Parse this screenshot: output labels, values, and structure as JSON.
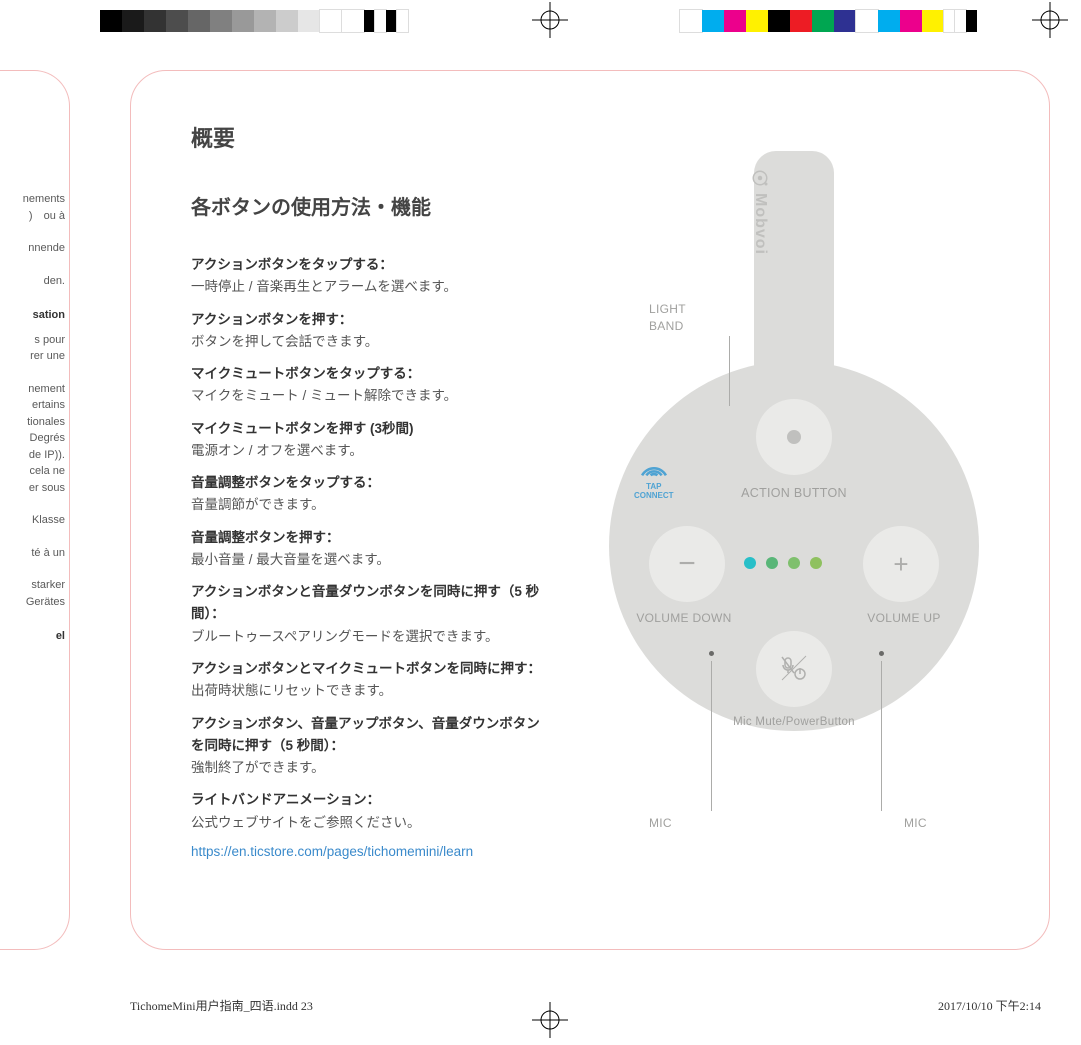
{
  "colorbars": {
    "left": [
      "#000000",
      "#1a1a1a",
      "#333333",
      "#4d4d4d",
      "#666666",
      "#808080",
      "#999999",
      "#b3b3b3",
      "#cccccc",
      "#e6e6e6",
      "#ffffff",
      "#ffffff",
      "#000000",
      "#ffffff",
      "#000000",
      "#ffffff"
    ],
    "right": [
      "#ffffff",
      "#00adee",
      "#ec008c",
      "#fff100",
      "#000000",
      "#ed1c24",
      "#00a651",
      "#2e3192",
      "#ffffff",
      "#00adee",
      "#ec008c",
      "#fff100",
      "#ffffff",
      "#ffffff",
      "#000000"
    ]
  },
  "leftSnippets": [
    "nements\n)　ou à",
    "nnende",
    "den.",
    "sation",
    "s pour\nrer une",
    "nement\nertains\ntionales\nDegrés\nde IP)).\ncela ne\ner sous",
    "Klasse",
    "té à un",
    "starker\nGerätes",
    "el"
  ],
  "leftBoldIdx": [
    3,
    9
  ],
  "title": "概要",
  "subtitle": "各ボタンの使用方法・機能",
  "items": [
    {
      "bold": "アクションボタンをタップする：",
      "text": "一時停止 / 音楽再生とアラームを選べます。"
    },
    {
      "bold": "アクションボタンを押す：",
      "text": "ボタンを押して会話できます。"
    },
    {
      "bold": "マイクミュートボタンをタップする：",
      "text": "マイクをミュート / ミュート解除できます。"
    },
    {
      "bold": "マイクミュートボタンを押す (3秒間)",
      "text": "電源オン / オフを選べます。"
    },
    {
      "bold": "音量調整ボタンをタップする：",
      "text": "音量調節ができます。"
    },
    {
      "bold": "音量調整ボタンを押す：",
      "text": "最小音量 / 最大音量を選べます。"
    },
    {
      "bold": "アクションボタンと音量ダウンボタンを同時に押す（5 秒間）：",
      "text": "ブルートゥースペアリングモードを選択できます。"
    },
    {
      "bold": "アクションボタンとマイクミュートボタンを同時に押す：",
      "text": "出荷時状態にリセットできます。",
      "inline": true
    },
    {
      "bold": "アクションボタン、音量アップボタン、音量ダウンボタンを同時に押す（5 秒間）：",
      "text": "強制終了ができます。"
    },
    {
      "bold": "ライトバンドアニメーション：",
      "text": "公式ウェブサイトをご参照ください。"
    }
  ],
  "link": "https://en.ticstore.com/pages/tichomemini/learn",
  "diagram": {
    "logo": "Mobvoi",
    "tapConnect": {
      "l1": "TAP",
      "l2": "CONNECT"
    },
    "labels": {
      "light": "LIGHT\nBAND",
      "action": "ACTION BUTTON",
      "volDown": "VOLUME DOWN",
      "volUp": "VOLUME UP",
      "mute": "Mic Mute/PowerButton",
      "mic": "MIC"
    },
    "glyphs": {
      "minus": "−",
      "plus": "+"
    },
    "leds": [
      "#28bfc8",
      "#59b678",
      "#7fc06d",
      "#8fc15f"
    ]
  },
  "footer": {
    "file": "TichomeMini用户指南_四语.indd   23",
    "date": "2017/10/10   下午2:14"
  }
}
